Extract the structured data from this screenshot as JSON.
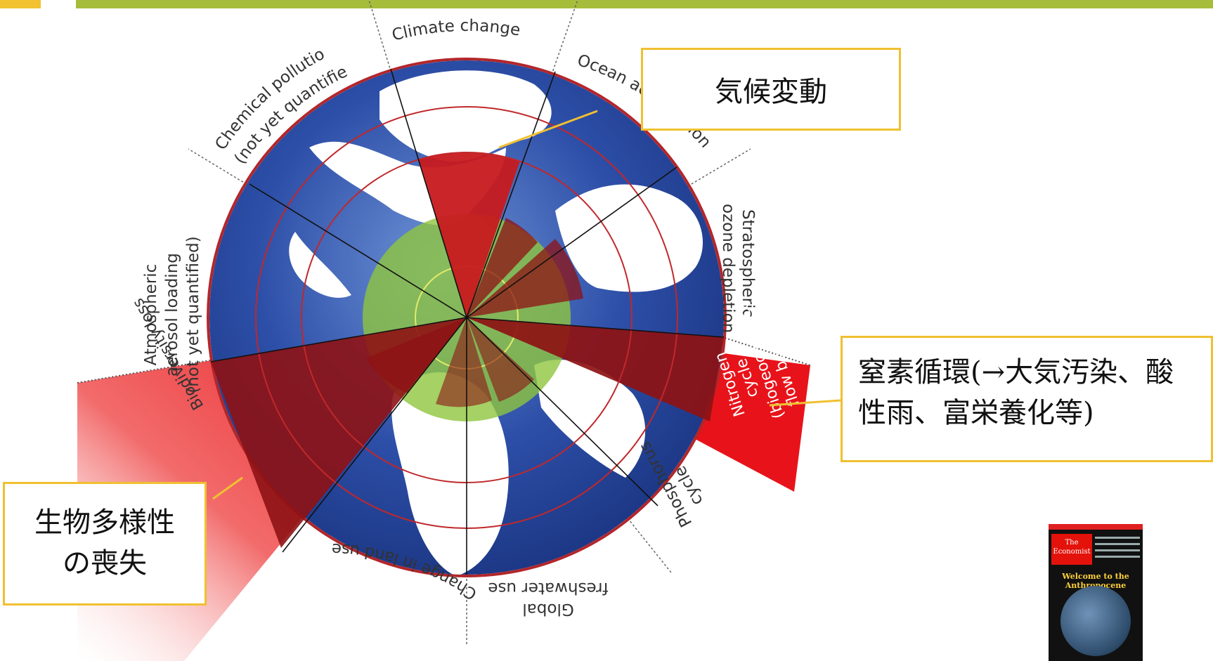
{
  "diagram": {
    "segments": [
      {
        "label": "Climate change",
        "status": "exceeded"
      },
      {
        "label": "Ocean acidification",
        "status": "safe"
      },
      {
        "label": "Stratospheric ozone depletion",
        "status": "safe"
      },
      {
        "label": "Nitrogen cycle (biogeochemical flow boundary)",
        "status": "exceeded"
      },
      {
        "label": "Phosphorus cycle",
        "status": "safe"
      },
      {
        "label": "Global freshwater use",
        "status": "safe"
      },
      {
        "label": "Change in land use",
        "status": "safe"
      },
      {
        "label": "Biodiversity loss",
        "status": "exceeded"
      },
      {
        "label": "Atmospheric aerosol loading (not yet quantified)",
        "status": "not_quantified"
      },
      {
        "label": "Chemical pollution (not yet quantified)",
        "status": "not_quantified"
      }
    ],
    "labels": {
      "climate": "Climate change",
      "ocean": "Ocean acidification",
      "ozone_1": "Stratospheric",
      "ozone_2": "ozone depletion",
      "nitrogen_1": "Nitrogen",
      "nitrogen_2": "cycle",
      "nitrogen_3": "(biogeochemical",
      "nitrogen_4": "flow boundary)",
      "phosphorus_1": "Phosphorus",
      "phosphorus_2": "cycle",
      "freshwater_1": "Global",
      "freshwater_2": "freshwater use",
      "landuse": "Change in land use",
      "biodiversity": "Biodiversity loss",
      "aerosol_1": "Atmospheric",
      "aerosol_2": "aerosol loading",
      "aerosol_3": "(not yet quantified)",
      "chemical_1": "Chemical pollution",
      "chemical_2": "(not yet quantified)"
    },
    "colors": {
      "exceeded": "#e8131a",
      "exceeded_dark": "#8e1214",
      "safe_zone": "#8ec63f",
      "ocean": "#2e4fa6",
      "ring": "#c0282b",
      "accent_yellow": "#f0c030",
      "header_green": "#a6bd3c"
    }
  },
  "callouts": {
    "climate": "気候変動",
    "nitrogen_line1": "窒素循環(→大気汚染、酸",
    "nitrogen_line2": "性雨、富栄養化等)",
    "biodiversity_line1": "生物多様性",
    "biodiversity_line2": "の喪失"
  },
  "thumbnail": {
    "publication": "The Economist",
    "headline": "Welcome to the Anthropocene"
  }
}
